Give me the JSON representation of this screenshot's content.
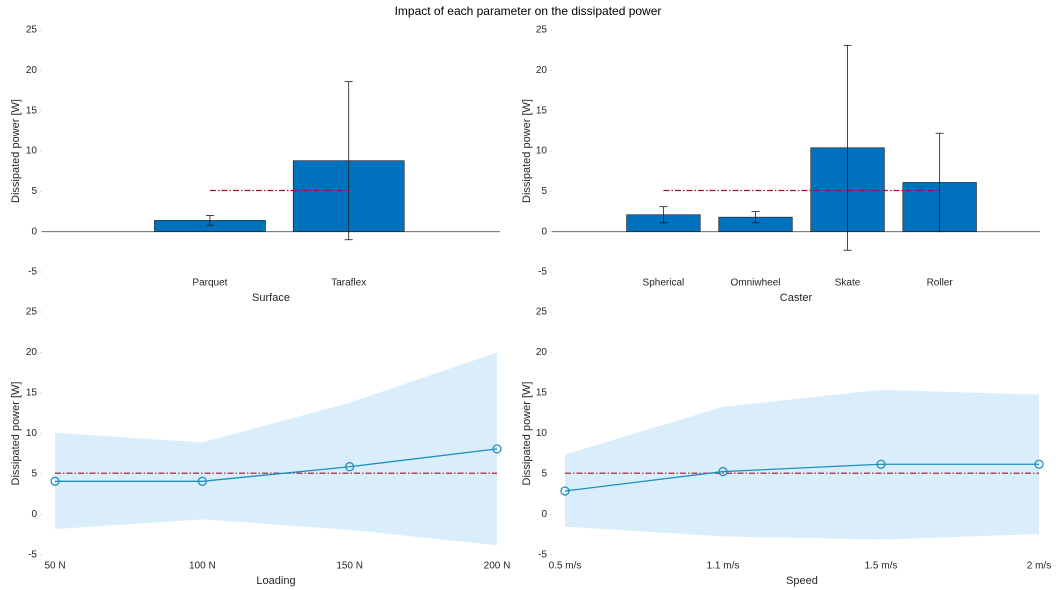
{
  "title": "Impact of each parameter on the dissipated power",
  "chart_data": [
    {
      "type": "bar",
      "xlabel": "Surface",
      "ylabel": "Dissipated power [W]",
      "categories": [
        null,
        "Parquet",
        "Taraflex"
      ],
      "values": [
        null,
        1.4,
        8.8
      ],
      "errors": [
        null,
        0.6,
        9.8
      ],
      "mean": 5.1,
      "color": "#0072bd",
      "mean_color": "#a2142f",
      "ylim": [
        -5,
        25
      ],
      "yticks": [
        -5,
        0,
        5,
        10,
        15,
        20,
        25
      ]
    },
    {
      "type": "bar",
      "xlabel": "Caster",
      "ylabel": "Dissipated power [W]",
      "categories": [
        null,
        "Spherical",
        "Omniwheel",
        "Skate",
        "Roller"
      ],
      "values": [
        null,
        2.1,
        1.8,
        10.4,
        6.1
      ],
      "errors": [
        null,
        1.0,
        0.7,
        12.7,
        6.1
      ],
      "mean": 5.1,
      "color": "#0072bd",
      "mean_color": "#a2142f",
      "ylim": [
        -5,
        25
      ],
      "yticks": [
        -5,
        0,
        5,
        10,
        15,
        20,
        25
      ]
    },
    {
      "type": "line",
      "xlabel": "Loading",
      "ylabel": "Dissipated power [W]",
      "categories": [
        "50 N",
        "100 N",
        "150 N",
        "200 N"
      ],
      "values": [
        4.1,
        4.1,
        5.9,
        8.1
      ],
      "upper": [
        10.1,
        8.9,
        13.8,
        20.0
      ],
      "lower": [
        -1.8,
        -0.6,
        -1.9,
        -3.8
      ],
      "mean": 5.1,
      "color": "#1f8fbf",
      "band_color": "#d9eefa",
      "mean_color": "#a2142f",
      "ylim": [
        -5,
        25
      ],
      "yticks": [
        -5,
        0,
        5,
        10,
        15,
        20,
        25
      ]
    },
    {
      "type": "line",
      "xlabel": "Speed",
      "ylabel": "Dissipated power [W]",
      "categories": [
        "0.5 m/s",
        "1.1 m/s",
        "1.5 m/s",
        "2 m/s"
      ],
      "values": [
        2.9,
        5.3,
        6.2,
        6.2
      ],
      "upper": [
        7.4,
        13.3,
        15.4,
        14.8
      ],
      "lower": [
        -1.5,
        -2.7,
        -3.1,
        -2.4
      ],
      "mean": 5.1,
      "color": "#1f8fbf",
      "band_color": "#d9eefa",
      "mean_color": "#a2142f",
      "ylim": [
        -5,
        25
      ],
      "yticks": [
        -5,
        0,
        5,
        10,
        15,
        20,
        25
      ]
    }
  ]
}
